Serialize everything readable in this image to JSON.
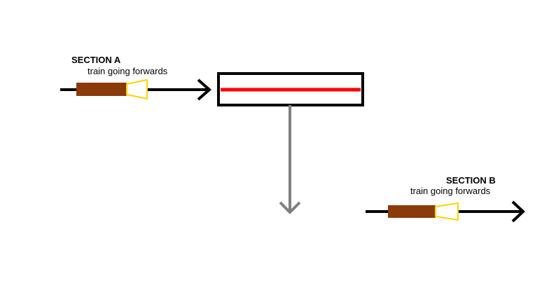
{
  "colors": {
    "track": "#000000",
    "train_body": "#8b3a0a",
    "train_headlight": "#ffd400",
    "transfer_bar": "#ff0000",
    "transfer_arrow": "#808080",
    "background": "#ffffff"
  },
  "section_a": {
    "title": "SECTION A",
    "subtitle": "train going forwards"
  },
  "section_b": {
    "title": "SECTION B",
    "subtitle": "train going forwards"
  },
  "icons": {
    "train": "train-icon",
    "headlight": "headlight-icon",
    "arrow": "arrow-right-icon",
    "transfer": "arrow-down-icon"
  }
}
